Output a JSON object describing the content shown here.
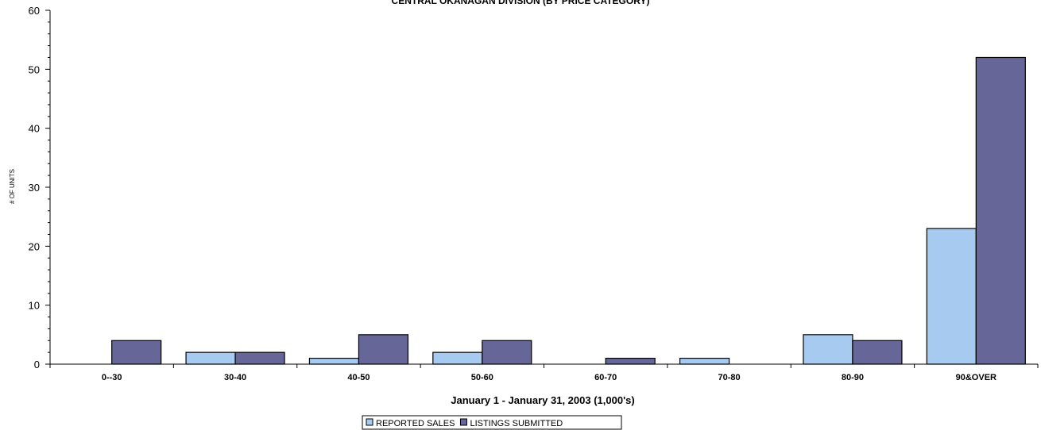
{
  "chart_data": {
    "type": "bar",
    "title": "CENTRAL OKANAGAN DIVISION (BY PRICE CATEGORY)",
    "xlabel": "January 1 - January 31, 2003 (1,000's)",
    "ylabel": "# OF UNITS",
    "ylim": [
      0,
      60
    ],
    "yticks": [
      0,
      10,
      20,
      30,
      40,
      50,
      60
    ],
    "categories": [
      "0--30",
      "30-40",
      "40-50",
      "50-60",
      "60-70",
      "70-80",
      "80-90",
      "90&OVER"
    ],
    "series": [
      {
        "name": "REPORTED SALES",
        "color": "#a6caf0",
        "values": [
          0,
          2,
          1,
          2,
          0,
          1,
          5,
          23
        ]
      },
      {
        "name": "LISTINGS SUBMITTED",
        "color": "#666699",
        "values": [
          4,
          2,
          5,
          4,
          1,
          0,
          4,
          52
        ]
      }
    ],
    "legend_position": "bottom-center",
    "grid": false
  }
}
